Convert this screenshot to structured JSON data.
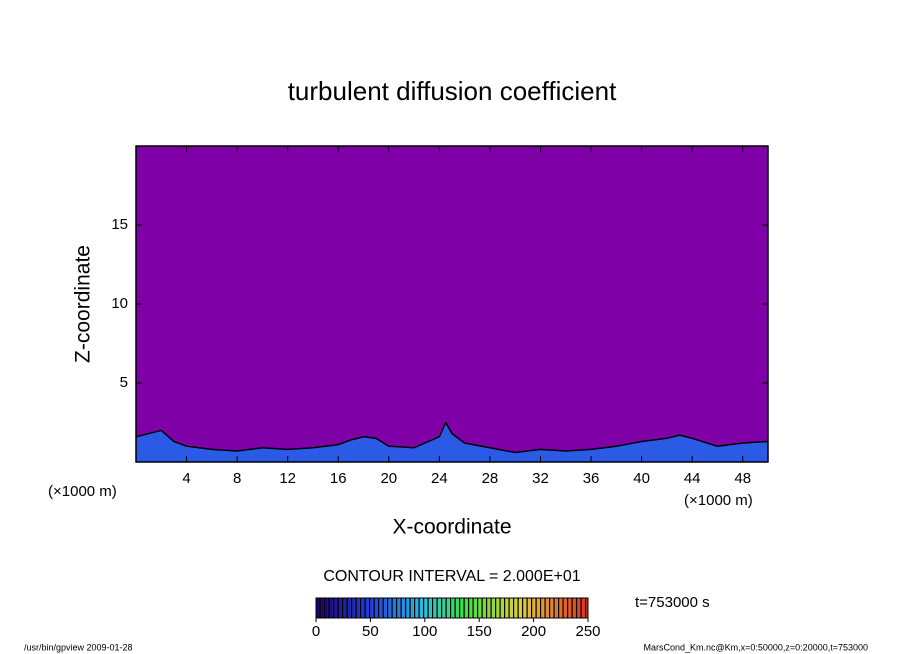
{
  "chart_data": {
    "type": "contour",
    "title": "turbulent diffusion coefficient",
    "x_label": "X-coordinate",
    "y_label": "Z-coordinate",
    "x_unit_label": "(×1000 m)",
    "y_unit_label": "(×1000 m)",
    "xlim": [
      0,
      50
    ],
    "ylim": [
      0,
      20
    ],
    "xticks": [
      4,
      8,
      12,
      16,
      20,
      24,
      28,
      32,
      36,
      40,
      44,
      48
    ],
    "yticks": [
      5,
      10,
      15
    ],
    "background_color": "#8000a8",
    "layer_color": "#2a5ae6",
    "x": [
      0,
      1,
      2,
      3,
      4,
      6,
      8,
      10,
      12,
      14,
      16,
      17,
      18,
      19,
      20,
      22,
      24,
      24.5,
      25,
      26,
      28,
      30,
      32,
      34,
      36,
      38,
      40,
      42,
      43,
      44,
      46,
      48,
      50
    ],
    "values": [
      1.6,
      1.8,
      2,
      1.3,
      1,
      0.8,
      0.7,
      0.9,
      0.8,
      0.9,
      1.1,
      1.4,
      1.6,
      1.5,
      1,
      0.9,
      1.6,
      2.5,
      1.8,
      1.2,
      0.9,
      0.6,
      0.8,
      0.7,
      0.8,
      1,
      1.3,
      1.5,
      1.7,
      1.5,
      1,
      1.2,
      1.3
    ],
    "contour_interval": "CONTOUR INTERVAL = 2.000E+01",
    "time_label": "t=753000 s",
    "colorbar": {
      "lim": [
        0,
        250
      ],
      "ticks": [
        0,
        50,
        100,
        150,
        200,
        250
      ]
    },
    "footer_left": "/usr/bin/gpview  2009-01-28",
    "footer_right": "MarsCond_Km.nc@Km,x=0:50000,z=0:20000,t=753000"
  }
}
